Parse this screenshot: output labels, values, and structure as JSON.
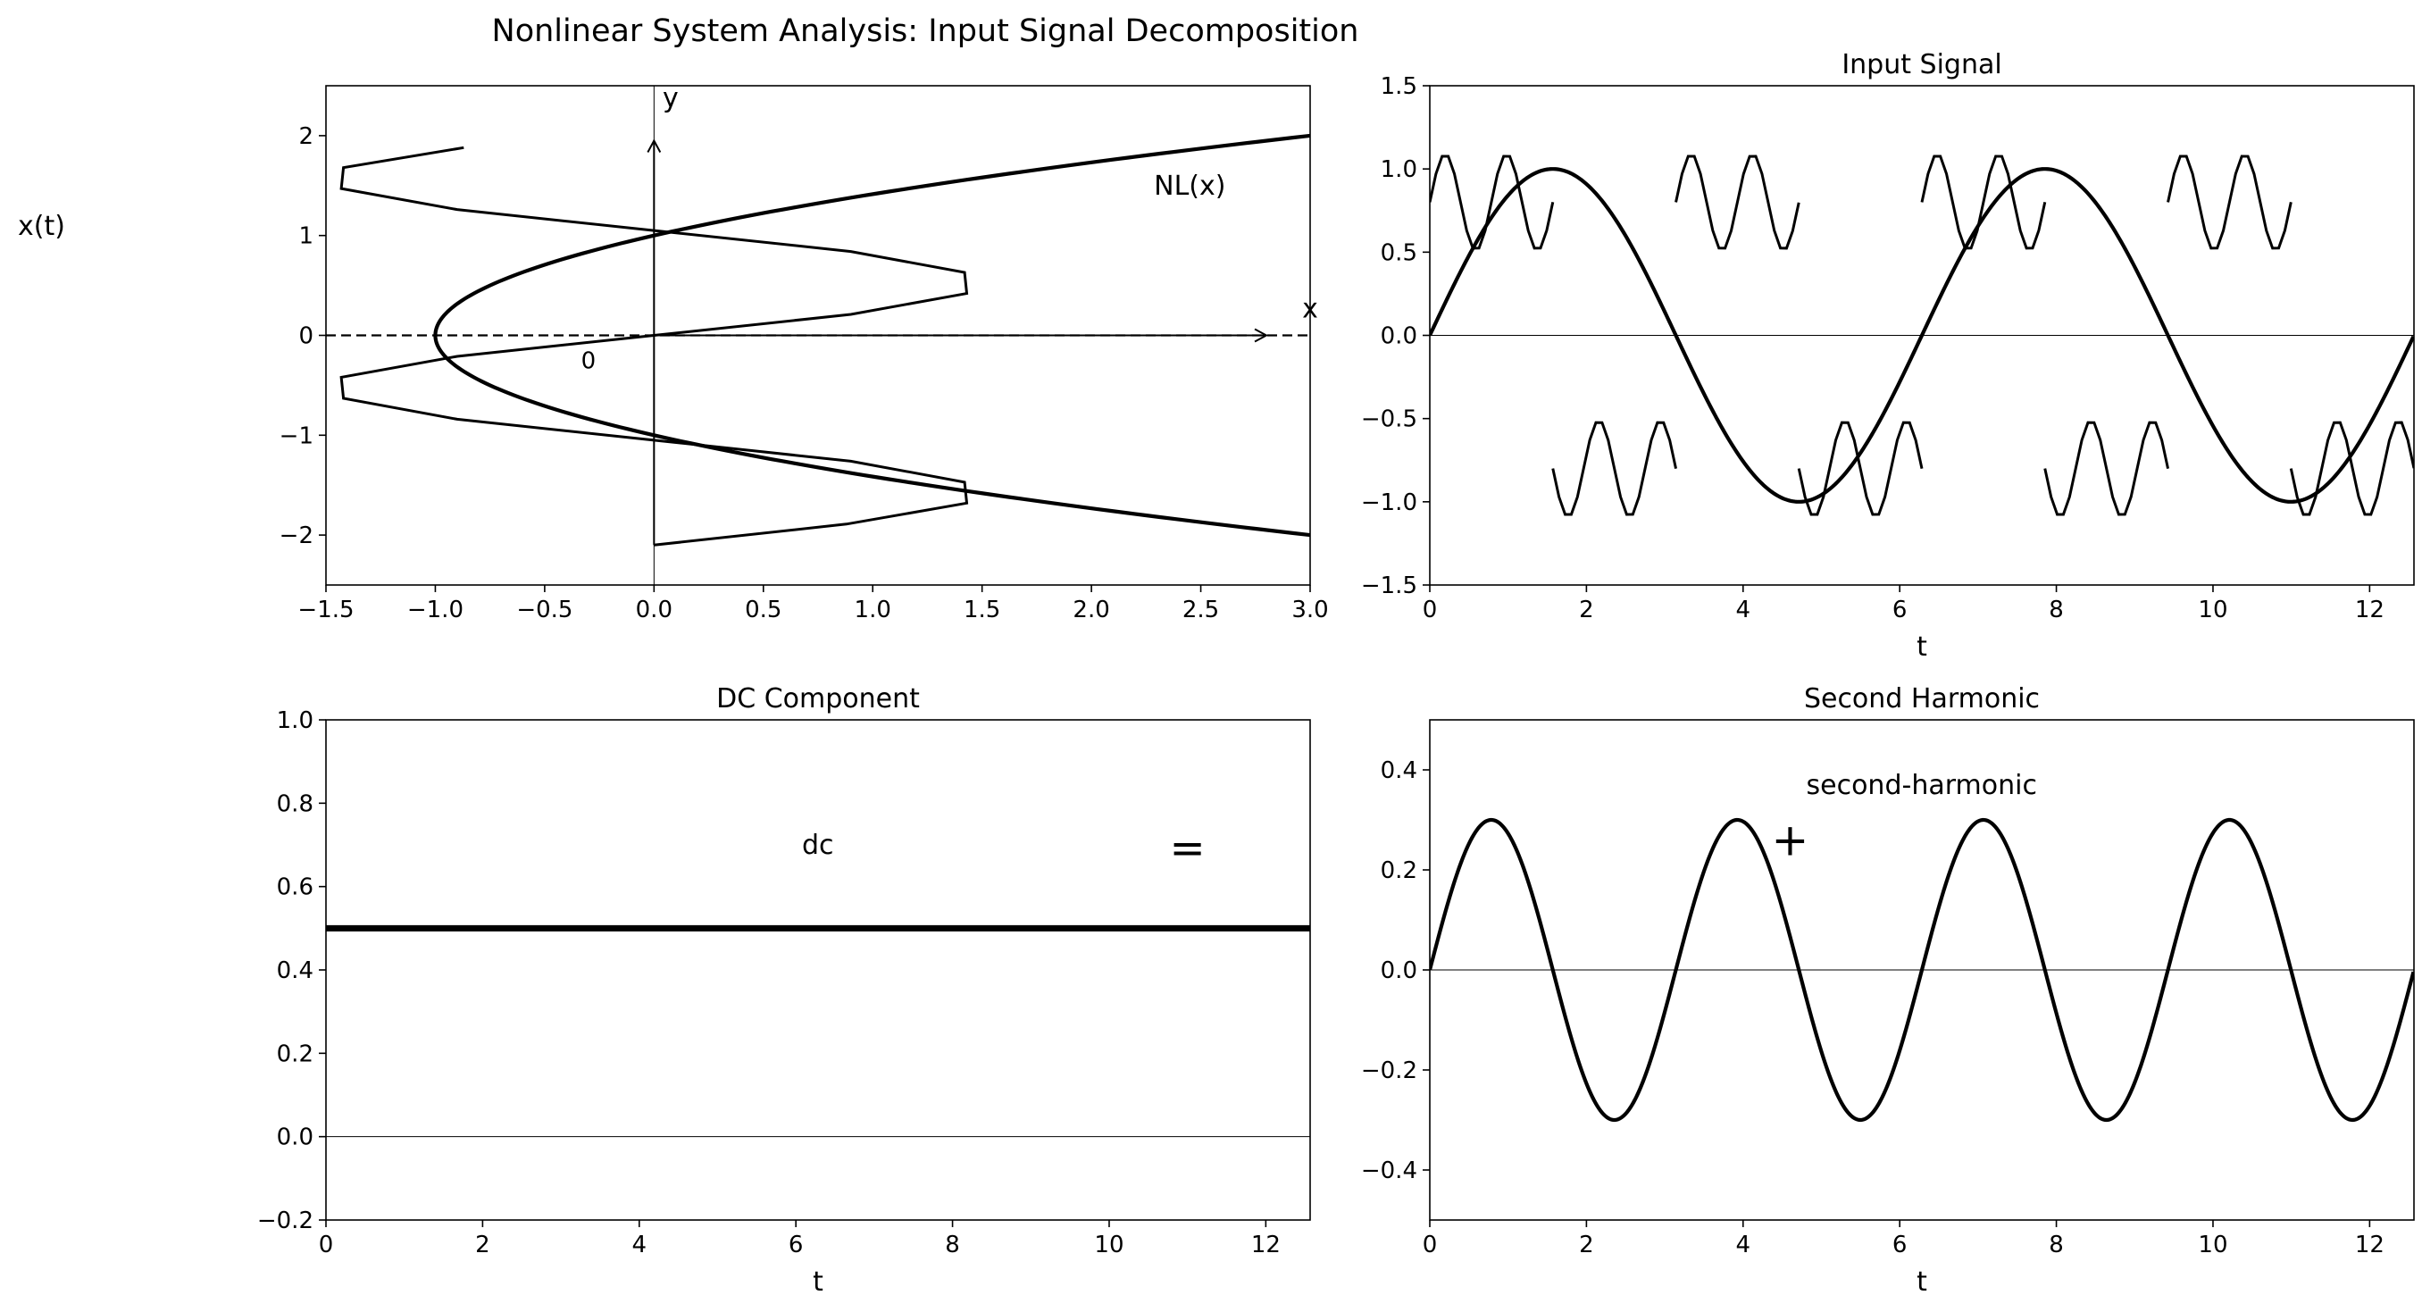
{
  "figure": {
    "suptitle": "Nonlinear System Analysis: Input Signal Decomposition",
    "side_label": "x(t)",
    "line_color": "#000000",
    "background": "#ffffff"
  },
  "chart_data": [
    {
      "id": "nonlinearity",
      "type": "line",
      "title": "",
      "xlabel": "",
      "ylabel": "",
      "xlim": [
        -1.5,
        3.0
      ],
      "ylim": [
        -2.5,
        2.5
      ],
      "xticks": [
        -1.5,
        -1.0,
        -0.5,
        0.0,
        0.5,
        1.0,
        1.5,
        2.0,
        2.5,
        3.0
      ],
      "xtick_labels": [
        "−1.5",
        "−1.0",
        "−0.5",
        "0.0",
        "0.5",
        "1.0",
        "1.5",
        "2.0",
        "2.5",
        "3.0"
      ],
      "yticks": [
        -2,
        -1,
        0,
        1,
        2
      ],
      "ytick_labels": [
        "−2",
        "−1",
        "0",
        "1",
        "2"
      ],
      "grid": false,
      "annotations": [
        {
          "text": "NL(x)",
          "x": 2.45,
          "y": 1.5
        },
        {
          "text": "x",
          "x": 3.0,
          "y": 0.27
        },
        {
          "text": "y",
          "x": 0.1,
          "y": 2.38
        },
        {
          "text": "0",
          "x": -0.3,
          "y": -0.25
        }
      ],
      "series": [
        {
          "role": "nonlinearity-curve",
          "x": [
            3.0,
            2.0,
            1.0,
            0.5,
            0.0,
            -0.5,
            -1.0,
            -0.5,
            0.0,
            0.5,
            1.0,
            2.0,
            3.0
          ],
          "y": [
            2.0,
            1.732,
            1.414,
            1.225,
            1.0,
            0.707,
            0.0,
            -0.707,
            -1.0,
            -1.225,
            -1.414,
            -1.732,
            -2.0
          ]
        },
        {
          "role": "input-trace",
          "x": [
            -0.87,
            -1.42,
            -1.43,
            -0.9,
            0.0,
            0.9,
            1.42,
            1.43,
            0.9,
            0.0,
            -0.9,
            -1.43,
            -1.42,
            -0.9,
            0.0,
            0.9,
            1.42,
            1.43,
            0.88,
            0.0
          ],
          "y": [
            1.88,
            1.68,
            1.47,
            1.26,
            1.05,
            0.84,
            0.63,
            0.42,
            0.21,
            0.0,
            -0.21,
            -0.42,
            -0.63,
            -0.84,
            -1.05,
            -1.26,
            -1.47,
            -1.68,
            -1.89,
            -2.1
          ]
        },
        {
          "role": "x-axis-dashed",
          "x": [
            -1.5,
            3.0
          ],
          "y": [
            0,
            0
          ]
        },
        {
          "role": "x-axis-arrow",
          "x": [
            0.0,
            2.8
          ],
          "y": [
            0,
            0
          ]
        },
        {
          "role": "y-axis-arrow",
          "x": [
            0.0,
            0.0
          ],
          "y": [
            -2.1,
            1.95
          ]
        }
      ]
    },
    {
      "id": "input-signal",
      "type": "line",
      "title": "Input Signal",
      "xlabel": "t",
      "ylabel": "",
      "xlim": [
        0,
        12.566
      ],
      "ylim": [
        -1.5,
        1.5
      ],
      "xticks": [
        0,
        2,
        4,
        6,
        8,
        10,
        12
      ],
      "xtick_labels": [
        "0",
        "2",
        "4",
        "6",
        "8",
        "10",
        "12"
      ],
      "yticks": [
        -1.5,
        -1.0,
        -0.5,
        0.0,
        0.5,
        1.0,
        1.5
      ],
      "ytick_labels": [
        "−1.5",
        "−1.0",
        "−0.5",
        "0.0",
        "0.5",
        "1.0",
        "1.5"
      ],
      "grid": false,
      "series": [
        {
          "role": "sine",
          "function": "sin(t)",
          "amplitude": 1.0,
          "frequency": 1,
          "t_range": [
            0,
            12.566
          ]
        },
        {
          "role": "fast-oscillation-segments",
          "segments": [
            {
              "t_start": 0.0,
              "t_end": 1.571,
              "center": 0.8
            },
            {
              "t_start": 1.571,
              "t_end": 3.142,
              "center": -0.8
            },
            {
              "t_start": 3.142,
              "t_end": 4.712,
              "center": 0.8
            },
            {
              "t_start": 4.712,
              "t_end": 6.283,
              "center": -0.8
            },
            {
              "t_start": 6.283,
              "t_end": 7.854,
              "center": 0.8
            },
            {
              "t_start": 7.854,
              "t_end": 9.425,
              "center": -0.8
            },
            {
              "t_start": 9.425,
              "t_end": 10.996,
              "center": 0.8
            },
            {
              "t_start": 10.996,
              "t_end": 12.566,
              "center": -0.8
            }
          ],
          "amplitude": 0.29,
          "frequency": 8
        }
      ],
      "reference_line": 0
    },
    {
      "id": "dc-component",
      "type": "line",
      "title": "DC Component",
      "xlabel": "t",
      "ylabel": "",
      "xlim": [
        0,
        12.566
      ],
      "ylim": [
        -0.2,
        1.0
      ],
      "xticks": [
        0,
        2,
        4,
        6,
        8,
        10,
        12
      ],
      "xtick_labels": [
        "0",
        "2",
        "4",
        "6",
        "8",
        "10",
        "12"
      ],
      "yticks": [
        -0.2,
        0.0,
        0.2,
        0.4,
        0.6,
        0.8,
        1.0
      ],
      "ytick_labels": [
        "−0.2",
        "0.0",
        "0.2",
        "0.4",
        "0.6",
        "0.8",
        "1.0"
      ],
      "grid": false,
      "annotations": [
        {
          "text": "dc",
          "x": 6.28,
          "y": 0.7
        },
        {
          "text": "=",
          "x": 11.0,
          "y": 0.7
        }
      ],
      "series": [
        {
          "role": "dc-level",
          "x": [
            0,
            12.566
          ],
          "y": [
            0.5,
            0.5
          ]
        }
      ],
      "reference_line": 0
    },
    {
      "id": "second-harmonic",
      "type": "line",
      "title": "Second Harmonic",
      "xlabel": "t",
      "ylabel": "",
      "xlim": [
        0,
        12.566
      ],
      "ylim": [
        -0.5,
        0.5
      ],
      "xticks": [
        0,
        2,
        4,
        6,
        8,
        10,
        12
      ],
      "xtick_labels": [
        "0",
        "2",
        "4",
        "6",
        "8",
        "10",
        "12"
      ],
      "yticks": [
        -0.4,
        -0.2,
        0.0,
        0.2,
        0.4
      ],
      "ytick_labels": [
        "−0.4",
        "−0.2",
        "0.0",
        "0.2",
        "0.4"
      ],
      "grid": false,
      "annotations": [
        {
          "text": "second-harmonic",
          "x": 6.28,
          "y": 0.37
        },
        {
          "text": "+",
          "x": 4.6,
          "y": 0.26
        }
      ],
      "series": [
        {
          "role": "harmonic",
          "function": "0.3*sin(2t)",
          "amplitude": 0.3,
          "frequency": 2,
          "t_range": [
            0,
            12.566
          ]
        }
      ],
      "reference_line": 0
    }
  ]
}
